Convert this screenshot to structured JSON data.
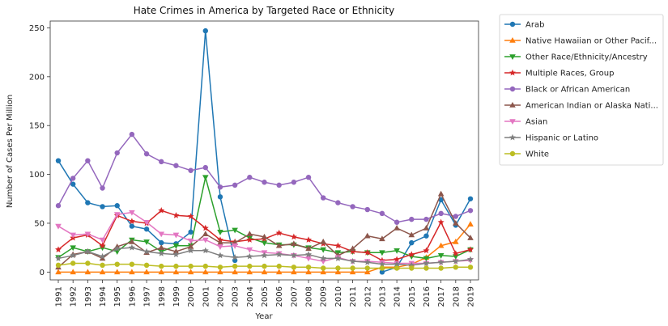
{
  "chart_data": {
    "type": "line",
    "title": "Hate Crimes in America by Targeted Race or Ethnicity",
    "xlabel": "Year",
    "ylabel": "Number of Cases Per Million",
    "ylim": [
      -8,
      257
    ],
    "yticks": [
      0,
      50,
      100,
      150,
      200,
      250
    ],
    "grid": false,
    "legend_position": "outside-right-top",
    "x": [
      "1991",
      "1992",
      "1993",
      "1994",
      "1995",
      "1996",
      "1997",
      "1998",
      "1999",
      "2000",
      "2001",
      "2002",
      "2003",
      "2004",
      "2005",
      "2006",
      "2007",
      "2008",
      "2009",
      "2010",
      "2011",
      "2012",
      "2013",
      "2014",
      "2015",
      "2016",
      "2017",
      "2018",
      "2019"
    ],
    "series": [
      {
        "name": "Arab",
        "color": "#1f77b4",
        "marker": "circle",
        "values": [
          114,
          90,
          71,
          67,
          68,
          47,
          44,
          30,
          29,
          41,
          247,
          77,
          12,
          null,
          null,
          null,
          null,
          null,
          null,
          null,
          null,
          null,
          0,
          5,
          30,
          37,
          74,
          48,
          75
        ]
      },
      {
        "name": "Native Hawaiian or Other Pacif...",
        "color": "#ff7f0e",
        "marker": "triangle-up",
        "values": [
          0,
          0,
          0,
          0,
          0,
          0,
          0,
          0,
          0,
          0,
          0,
          0,
          0,
          0,
          0,
          0,
          0,
          0,
          0,
          0,
          0,
          0,
          5,
          5,
          8,
          15,
          27,
          31,
          49
        ]
      },
      {
        "name": "Other Race/Ethnicity/Ancestry",
        "color": "#2ca02c",
        "marker": "triangle-down",
        "values": [
          15,
          25,
          21,
          25,
          21,
          33,
          31,
          21,
          27,
          27,
          97,
          41,
          43,
          35,
          30,
          28,
          28,
          25,
          23,
          20,
          21,
          20,
          20,
          22,
          16,
          14,
          17,
          16,
          23
        ]
      },
      {
        "name": "Multiple Races, Group",
        "color": "#d62728",
        "marker": "star",
        "values": [
          23,
          35,
          38,
          27,
          58,
          52,
          50,
          63,
          58,
          57,
          45,
          33,
          31,
          33,
          34,
          40,
          36,
          33,
          29,
          27,
          21,
          20,
          12,
          13,
          18,
          22,
          51,
          19,
          23
        ]
      },
      {
        "name": "Black or African American",
        "color": "#9467bd",
        "marker": "circle",
        "values": [
          68,
          96,
          114,
          86,
          122,
          141,
          121,
          113,
          109,
          104,
          107,
          87,
          89,
          97,
          92,
          89,
          92,
          97,
          76,
          71,
          67,
          64,
          60,
          51,
          54,
          54,
          60,
          57,
          63
        ]
      },
      {
        "name": "American Indian or Alaska Nati...",
        "color": "#8c564b",
        "marker": "triangle-up",
        "values": [
          5,
          18,
          21,
          14,
          26,
          31,
          20,
          25,
          21,
          26,
          39,
          30,
          30,
          39,
          36,
          27,
          29,
          24,
          31,
          17,
          24,
          37,
          34,
          45,
          38,
          45,
          80,
          50,
          35
        ]
      },
      {
        "name": "Asian",
        "color": "#e377c2",
        "marker": "triangle-down",
        "values": [
          47,
          38,
          39,
          33,
          59,
          61,
          51,
          39,
          38,
          32,
          33,
          26,
          27,
          23,
          20,
          19,
          17,
          14,
          11,
          15,
          11,
          11,
          10,
          9,
          9,
          9,
          10,
          11,
          12
        ]
      },
      {
        "name": "Hispanic or Latino",
        "color": "#7f7f7f",
        "marker": "star",
        "values": [
          14,
          17,
          21,
          16,
          24,
          25,
          21,
          19,
          18,
          22,
          22,
          17,
          15,
          16,
          17,
          18,
          17,
          18,
          14,
          14,
          11,
          10,
          8,
          8,
          7,
          9,
          10,
          11,
          13
        ]
      },
      {
        "name": "White",
        "color": "#bcbd22",
        "marker": "circle",
        "values": [
          7,
          9,
          9,
          7,
          8,
          8,
          7,
          6,
          6,
          6,
          6,
          5,
          6,
          6,
          6,
          6,
          5,
          5,
          4,
          4,
          4,
          4,
          4,
          4,
          4,
          4,
          4,
          5,
          5
        ]
      }
    ]
  }
}
